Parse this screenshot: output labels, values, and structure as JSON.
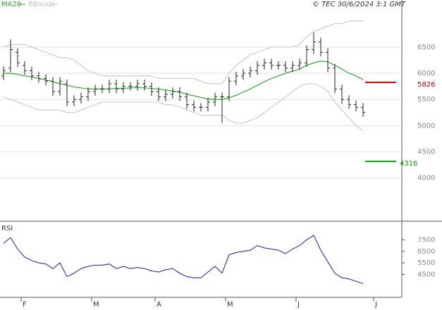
{
  "chart_data": [
    {
      "type": "ohlc",
      "source": "© TEC 30/6/2024 3:1 GMT",
      "color": "#222222",
      "open": [
        5950,
        6100,
        6400,
        6150,
        6050,
        5950,
        5900,
        5850,
        5650,
        5800,
        5450,
        5500,
        5550,
        5650,
        5700,
        5700,
        5800,
        5700,
        5750,
        5750,
        5800,
        5750,
        5650,
        5550,
        5600,
        5650,
        5550,
        5400,
        5350,
        5350,
        5450,
        5550,
        5550,
        5850,
        5950,
        6000,
        6050,
        6150,
        6200,
        6150,
        6150,
        6100,
        6150,
        6200,
        6450,
        6600,
        6400,
        6100,
        5700,
        5500,
        5400,
        5350
      ],
      "high": [
        6130,
        6650,
        6480,
        6230,
        6130,
        6030,
        5980,
        5930,
        5930,
        5880,
        5580,
        5630,
        5730,
        5780,
        5780,
        5880,
        5880,
        5830,
        5830,
        5880,
        5880,
        5830,
        5730,
        5680,
        5730,
        5730,
        5630,
        5480,
        5430,
        5530,
        5630,
        5630,
        5930,
        6030,
        6080,
        6130,
        6230,
        6280,
        6280,
        6230,
        6230,
        6230,
        6280,
        6530,
        6780,
        6680,
        6480,
        6180,
        5780,
        5580,
        5480,
        5430
      ],
      "low": [
        5870,
        6020,
        6120,
        5970,
        5870,
        5820,
        5770,
        5570,
        5570,
        5370,
        5370,
        5420,
        5470,
        5570,
        5620,
        5620,
        5620,
        5620,
        5670,
        5670,
        5670,
        5570,
        5470,
        5470,
        5520,
        5470,
        5320,
        5270,
        5270,
        5270,
        5370,
        5050,
        5470,
        5770,
        5870,
        5920,
        5970,
        6070,
        6070,
        6070,
        6020,
        6020,
        6070,
        6120,
        6370,
        6320,
        6020,
        5620,
        5420,
        5320,
        5270,
        5170
      ],
      "close": [
        6050,
        6450,
        6200,
        6050,
        5950,
        5900,
        5850,
        5650,
        5850,
        5450,
        5500,
        5550,
        5650,
        5700,
        5700,
        5800,
        5700,
        5750,
        5750,
        5800,
        5750,
        5650,
        5550,
        5600,
        5650,
        5550,
        5400,
        5350,
        5350,
        5450,
        5550,
        5550,
        5850,
        5950,
        6000,
        6050,
        6150,
        6200,
        6150,
        6150,
        6100,
        6150,
        6200,
        6450,
        6600,
        6400,
        6100,
        5700,
        5500,
        5400,
        5350,
        5250
      ],
      "overlays": [
        {
          "name": "MA20",
          "color": "#2ea82e",
          "values": [
            6000,
            6000,
            5980,
            5950,
            5930,
            5900,
            5870,
            5840,
            5800,
            5770,
            5740,
            5720,
            5700,
            5700,
            5700,
            5700,
            5710,
            5710,
            5720,
            5730,
            5720,
            5710,
            5700,
            5680,
            5660,
            5640,
            5600,
            5570,
            5540,
            5510,
            5500,
            5500,
            5530,
            5580,
            5640,
            5700,
            5770,
            5840,
            5900,
            5950,
            6000,
            6040,
            6080,
            6150,
            6200,
            6230,
            6220,
            6150,
            6080,
            6000,
            5950,
            5880
          ]
        },
        {
          "name": "BBands",
          "color": "#c4c4c4",
          "upper": [
            6500,
            6550,
            6550,
            6550,
            6500,
            6450,
            6400,
            6350,
            6300,
            6300,
            6250,
            6150,
            6050,
            6000,
            5950,
            5950,
            5950,
            5950,
            5950,
            5950,
            5950,
            5950,
            5900,
            5900,
            5900,
            5900,
            5900,
            5900,
            5850,
            5800,
            5800,
            5800,
            6000,
            6150,
            6250,
            6350,
            6400,
            6450,
            6500,
            6500,
            6500,
            6500,
            6550,
            6700,
            6800,
            6850,
            6900,
            6950,
            6950,
            7000,
            7000,
            7000
          ],
          "lower": [
            5550,
            5500,
            5450,
            5400,
            5350,
            5300,
            5300,
            5300,
            5300,
            5250,
            5250,
            5300,
            5350,
            5400,
            5450,
            5450,
            5450,
            5450,
            5450,
            5450,
            5450,
            5450,
            5450,
            5400,
            5400,
            5350,
            5300,
            5250,
            5200,
            5200,
            5200,
            5200,
            5100,
            5050,
            5050,
            5100,
            5150,
            5250,
            5350,
            5450,
            5550,
            5650,
            5750,
            5800,
            5800,
            5750,
            5650,
            5450,
            5300,
            5150,
            5000,
            4900
          ]
        }
      ],
      "levels": [
        {
          "value": 5826,
          "color": "#cc0000"
        },
        {
          "value": 4316,
          "color": "#119911"
        }
      ],
      "ylim": [
        3200,
        7400
      ],
      "yticks": [
        4000,
        4500,
        5000,
        5500,
        6000,
        6500
      ],
      "grid": true
    },
    {
      "type": "line",
      "title": "RSI",
      "color": "#1c1ca0",
      "categories": [
        null,
        null,
        null,
        "F",
        null,
        null,
        null,
        null,
        null,
        null,
        null,
        null,
        null,
        "M",
        null,
        null,
        null,
        null,
        null,
        null,
        null,
        null,
        "A",
        null,
        null,
        null,
        null,
        null,
        null,
        null,
        null,
        null,
        "M",
        null,
        null,
        null,
        null,
        null,
        null,
        null,
        null,
        null,
        "J",
        null,
        null,
        null,
        null,
        null,
        null,
        null,
        null,
        null,
        null,
        "J",
        null
      ],
      "values": [
        7200,
        7700,
        6700,
        6000,
        5700,
        5500,
        5400,
        5000,
        5500,
        4300,
        4600,
        5000,
        5200,
        5300,
        5300,
        5400,
        5000,
        5200,
        5000,
        5100,
        5000,
        4800,
        4700,
        4900,
        5000,
        4600,
        4300,
        4200,
        4200,
        4700,
        5200,
        4600,
        6200,
        6400,
        6500,
        6600,
        7000,
        6800,
        6700,
        6600,
        6300,
        6700,
        7000,
        7500,
        7900,
        6600,
        5600,
        4600,
        4200,
        4100,
        3900,
        3700,
        null,
        null,
        null
      ],
      "ylim": [
        2500,
        9000
      ],
      "yticks": [
        4500,
        5500,
        6500,
        7500
      ]
    }
  ]
}
